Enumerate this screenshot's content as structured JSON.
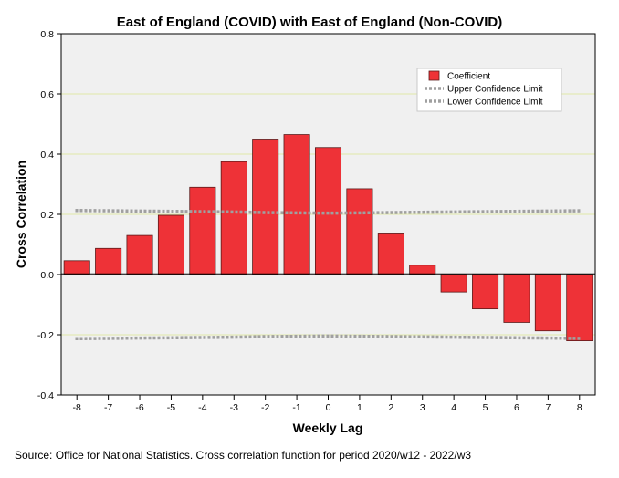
{
  "chart_data": {
    "type": "bar",
    "title": "East of England (COVID) with East of England (Non-COVID)",
    "xlabel": "Weekly Lag",
    "ylabel": "Cross Correlation",
    "categories": [
      "-8",
      "-7",
      "-6",
      "-5",
      "-4",
      "-3",
      "-2",
      "-1",
      "0",
      "1",
      "2",
      "3",
      "4",
      "5",
      "6",
      "7",
      "8"
    ],
    "ylim": [
      -0.4,
      0.8
    ],
    "yticks": [
      "-0.4",
      "-0.2",
      "0.0",
      "0.2",
      "0.4",
      "0.6",
      "0.8"
    ],
    "grid": "horizontal",
    "legend_position": "top-right",
    "series": [
      {
        "name": "Coefficient",
        "kind": "bar",
        "color": "#ee3237",
        "values": [
          0.046,
          0.087,
          0.13,
          0.197,
          0.29,
          0.375,
          0.45,
          0.465,
          0.422,
          0.285,
          0.138,
          0.031,
          -0.058,
          -0.114,
          -0.159,
          -0.187,
          -0.22
        ]
      },
      {
        "name": "Upper Confidence Limit",
        "kind": "line",
        "color": "#a0a0a0",
        "values": [
          0.213,
          0.212,
          0.211,
          0.21,
          0.209,
          0.208,
          0.206,
          0.205,
          0.204,
          0.205,
          0.206,
          0.207,
          0.208,
          0.209,
          0.21,
          0.211,
          0.212
        ]
      },
      {
        "name": "Lower Confidence Limit",
        "kind": "line",
        "color": "#a0a0a0",
        "values": [
          -0.213,
          -0.212,
          -0.211,
          -0.21,
          -0.209,
          -0.208,
          -0.206,
          -0.205,
          -0.204,
          -0.205,
          -0.206,
          -0.207,
          -0.208,
          -0.209,
          -0.21,
          -0.211,
          -0.212
        ]
      }
    ]
  },
  "source_note": "Source: Office for National Statistics. Cross correlation function for period 2020/w12 - 2022/w3",
  "colors": {
    "plot_background": "#f0f0f0",
    "gridline": "#dfe7a8",
    "bar_fill": "#ee3237",
    "bar_stroke": "#5a1a1a",
    "confidence_line": "#a0a0a0"
  }
}
